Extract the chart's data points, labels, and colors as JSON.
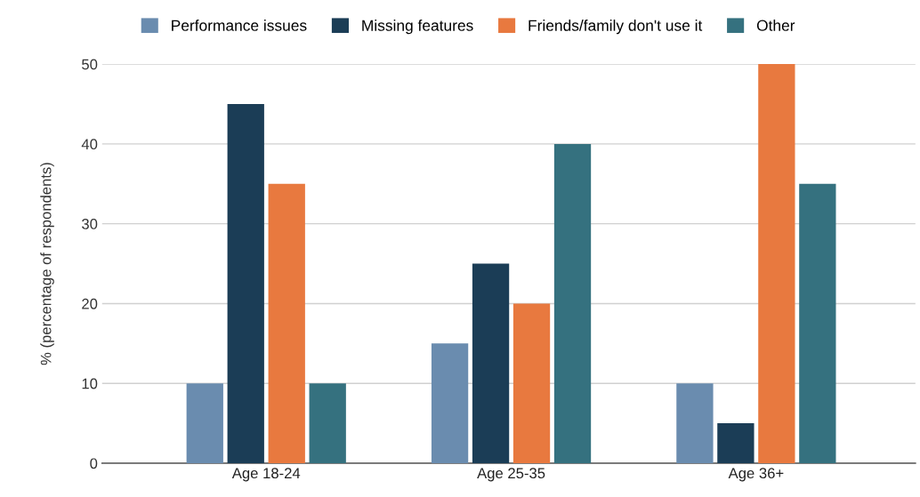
{
  "chart_data": {
    "type": "bar",
    "ylabel": "% (percentage of respondents)",
    "categories": [
      "Age 18-24",
      "Age 25-35",
      "Age 36+"
    ],
    "series": [
      {
        "name": "Performance issues",
        "color": "#6a8caf",
        "values": [
          10,
          15,
          10
        ]
      },
      {
        "name": "Missing features",
        "color": "#1b3d56",
        "values": [
          45,
          25,
          5
        ]
      },
      {
        "name": "Friends/family don't use it",
        "color": "#e8793f",
        "values": [
          35,
          20,
          50
        ]
      },
      {
        "name": "Other",
        "color": "#35717f",
        "values": [
          10,
          40,
          35
        ]
      }
    ],
    "ylim": [
      0,
      50
    ],
    "yticks": [
      0,
      10,
      20,
      30,
      40,
      50
    ],
    "grid": "y",
    "legend": "top"
  }
}
